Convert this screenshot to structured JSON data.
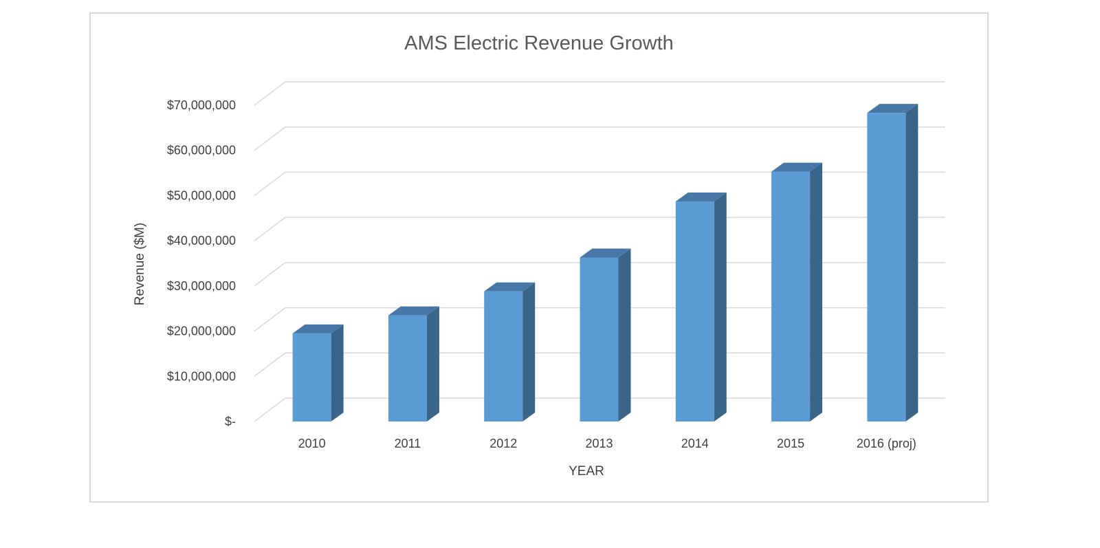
{
  "chart_data": {
    "type": "bar",
    "style": "3d-column",
    "title": "AMS Electric Revenue Growth",
    "xlabel": "YEAR",
    "ylabel": "Revenue ($M)",
    "categories": [
      "2010",
      "2011",
      "2012",
      "2013",
      "2014",
      "2015",
      "2016 (proj)"
    ],
    "series": [
      {
        "name": "Revenue",
        "values": [
          19500000,
          23500000,
          28800000,
          36300000,
          48700000,
          55300000,
          68300000
        ]
      }
    ],
    "ylim": [
      0,
      70000000
    ],
    "yticks": [
      0,
      10000000,
      20000000,
      30000000,
      40000000,
      50000000,
      60000000,
      70000000
    ],
    "ytick_labels": [
      "$-",
      "$10,000,000",
      "$20,000,000",
      "$30,000,000",
      "$40,000,000",
      "$50,000,000",
      "$60,000,000",
      "$70,000,000"
    ],
    "grid": true,
    "legend": "none",
    "colors": {
      "front": "#5b9bd5",
      "side": "#3a6589",
      "top": "#4677a6",
      "grid": "#d9d9d9",
      "text": "#404040",
      "title": "#595959"
    }
  }
}
